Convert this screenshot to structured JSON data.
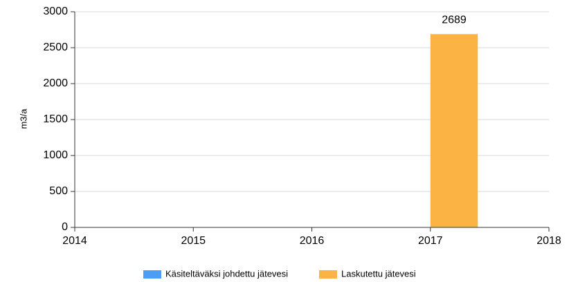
{
  "chart_data": {
    "type": "bar",
    "y_label": "m3/a",
    "x": [
      2017
    ],
    "series": [
      {
        "name": "Käsiteltäväksi johdettu jätevesi",
        "color": "#4d9cf5",
        "values": [
          null
        ]
      },
      {
        "name": "Laskutettu jätevesi",
        "color": "#fbb444",
        "values": [
          2689
        ]
      }
    ],
    "xlim": [
      2014,
      2018
    ],
    "xticks": [
      2014,
      2015,
      2016,
      2017,
      2018
    ],
    "ylim": [
      0,
      3000
    ],
    "yticks": [
      0,
      500,
      1000,
      1500,
      2000,
      2500,
      3000
    ],
    "grid": true
  }
}
